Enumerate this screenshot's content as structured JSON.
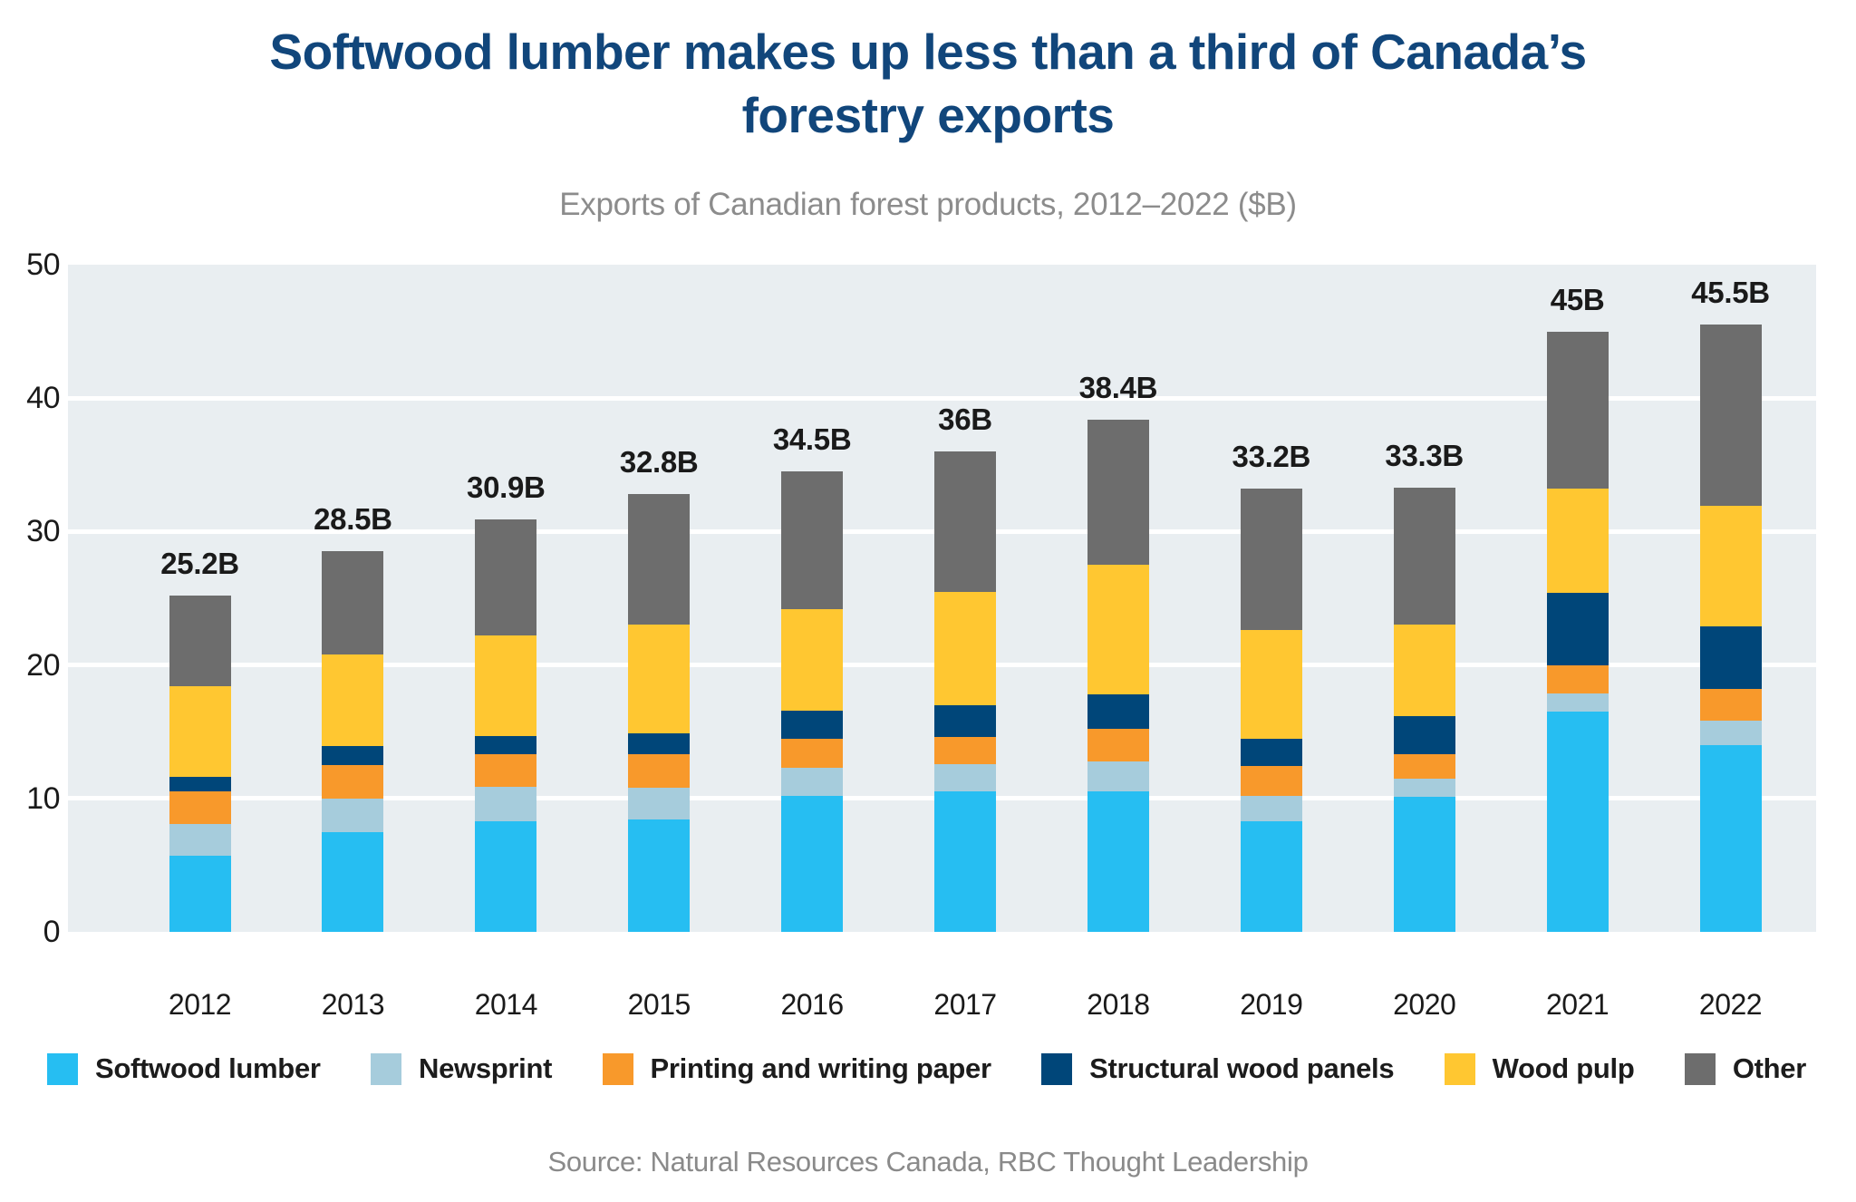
{
  "title": "Softwood lumber makes up less than a third of Canada’s forestry exports",
  "subtitle": "Exports of Canadian forest products, 2012–2022 ($B)",
  "source": "Source: Natural Resources Canada, RBC Thought Leadership",
  "colors": {
    "title_blue": "#11467B",
    "plot_background": "#E9EEF1",
    "gridline": "#FFFFFF",
    "tick_text": "#1A1A1A",
    "muted_text": "#8A8A8A"
  },
  "chart_data": {
    "type": "bar",
    "stacked": true,
    "title": "Softwood lumber makes up less than a third of Canada’s forestry exports",
    "subtitle": "Exports of Canadian forest products, 2012–2022 ($B)",
    "categories": [
      "2012",
      "2013",
      "2014",
      "2015",
      "2016",
      "2017",
      "2018",
      "2019",
      "2020",
      "2021",
      "2022"
    ],
    "series": [
      {
        "name": "Softwood lumber",
        "color": "#26BEF2",
        "values": [
          5.7,
          7.5,
          8.3,
          8.4,
          10.2,
          10.5,
          10.5,
          8.3,
          10.1,
          16.5,
          14.0
        ]
      },
      {
        "name": "Newsprint",
        "color": "#A6CCDC",
        "values": [
          2.4,
          2.5,
          2.6,
          2.4,
          2.1,
          2.1,
          2.3,
          1.9,
          1.4,
          1.4,
          1.8
        ]
      },
      {
        "name": "Printing and writing paper",
        "color": "#F8992B",
        "values": [
          2.4,
          2.5,
          2.4,
          2.5,
          2.2,
          2.0,
          2.4,
          2.2,
          1.8,
          2.1,
          2.4
        ]
      },
      {
        "name": "Structural wood panels",
        "color": "#004679",
        "values": [
          1.1,
          1.4,
          1.4,
          1.6,
          2.1,
          2.4,
          2.6,
          2.1,
          2.9,
          5.4,
          4.7
        ]
      },
      {
        "name": "Wood pulp",
        "color": "#FFC731",
        "values": [
          6.8,
          6.9,
          7.5,
          8.1,
          7.6,
          8.5,
          9.7,
          8.1,
          6.8,
          7.8,
          9.0
        ]
      },
      {
        "name": "Other",
        "color": "#6D6D6D",
        "values": [
          6.8,
          7.7,
          8.7,
          9.8,
          10.3,
          10.5,
          10.9,
          10.6,
          10.3,
          11.8,
          13.6
        ]
      }
    ],
    "total_labels": [
      "25.2B",
      "28.5B",
      "30.9B",
      "32.8B",
      "34.5B",
      "36B",
      "38.4B",
      "33.2B",
      "33.3B",
      "45B",
      "45.5B"
    ],
    "ylabel": "",
    "xlabel": "",
    "ylim": [
      0,
      50
    ],
    "y_ticks": [
      0,
      10,
      20,
      30,
      40,
      50
    ],
    "grid": true,
    "legend_position": "bottom"
  }
}
